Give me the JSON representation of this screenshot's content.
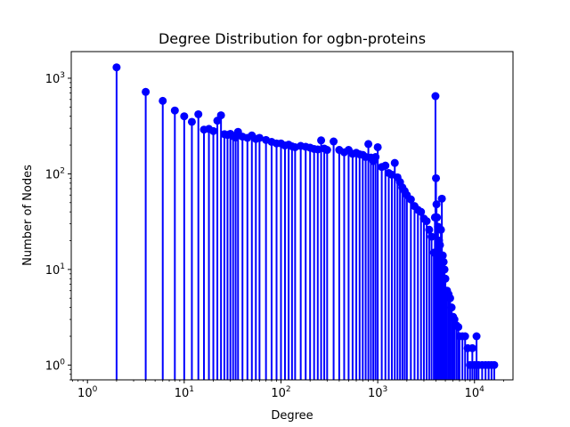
{
  "chart_data": {
    "type": "stem",
    "title": "Degree Distribution for ogbn-proteins",
    "xlabel": "Degree",
    "ylabel": "Number of Nodes",
    "xscale": "log",
    "yscale": "log",
    "xlim": [
      0.68,
      25000
    ],
    "ylim": [
      0.7,
      1900
    ],
    "xticks": [
      {
        "value": 1,
        "base": "10",
        "exp": "0"
      },
      {
        "value": 10,
        "base": "10",
        "exp": "1"
      },
      {
        "value": 100,
        "base": "10",
        "exp": "2"
      },
      {
        "value": 1000,
        "base": "10",
        "exp": "3"
      },
      {
        "value": 10000,
        "base": "10",
        "exp": "4"
      }
    ],
    "yticks": [
      {
        "value": 1,
        "base": "10",
        "exp": "0"
      },
      {
        "value": 10,
        "base": "10",
        "exp": "1"
      },
      {
        "value": 100,
        "base": "10",
        "exp": "2"
      },
      {
        "value": 1000,
        "base": "10",
        "exp": "3"
      }
    ],
    "grid": false,
    "legend": "none",
    "color": "#0000ff",
    "points": [
      [
        2,
        1300
      ],
      [
        4,
        720
      ],
      [
        6,
        580
      ],
      [
        8,
        460
      ],
      [
        10,
        400
      ],
      [
        12,
        350
      ],
      [
        14,
        420
      ],
      [
        16,
        290
      ],
      [
        18,
        295
      ],
      [
        20,
        280
      ],
      [
        22,
        360
      ],
      [
        24,
        410
      ],
      [
        26,
        260
      ],
      [
        28,
        255
      ],
      [
        30,
        262
      ],
      [
        32,
        248
      ],
      [
        34,
        240
      ],
      [
        36,
        275
      ],
      [
        40,
        245
      ],
      [
        45,
        238
      ],
      [
        50,
        252
      ],
      [
        55,
        232
      ],
      [
        60,
        238
      ],
      [
        70,
        226
      ],
      [
        80,
        216
      ],
      [
        90,
        208
      ],
      [
        100,
        208
      ],
      [
        110,
        198
      ],
      [
        120,
        202
      ],
      [
        130,
        194
      ],
      [
        140,
        190
      ],
      [
        160,
        196
      ],
      [
        180,
        192
      ],
      [
        200,
        188
      ],
      [
        220,
        182
      ],
      [
        240,
        180
      ],
      [
        260,
        224
      ],
      [
        280,
        184
      ],
      [
        300,
        178
      ],
      [
        350,
        218
      ],
      [
        400,
        178
      ],
      [
        450,
        168
      ],
      [
        500,
        178
      ],
      [
        550,
        162
      ],
      [
        600,
        166
      ],
      [
        650,
        160
      ],
      [
        700,
        158
      ],
      [
        750,
        150
      ],
      [
        800,
        205
      ],
      [
        850,
        148
      ],
      [
        900,
        136
      ],
      [
        950,
        150
      ],
      [
        1000,
        190
      ],
      [
        1100,
        118
      ],
      [
        1200,
        122
      ],
      [
        1300,
        102
      ],
      [
        1400,
        98
      ],
      [
        1500,
        130
      ],
      [
        1600,
        92
      ],
      [
        1700,
        82
      ],
      [
        1800,
        72
      ],
      [
        1900,
        66
      ],
      [
        2000,
        60
      ],
      [
        2200,
        54
      ],
      [
        2400,
        46
      ],
      [
        2600,
        42
      ],
      [
        2800,
        40
      ],
      [
        3000,
        34
      ],
      [
        3200,
        32
      ],
      [
        3400,
        26
      ],
      [
        3600,
        22
      ],
      [
        3800,
        15
      ],
      [
        3900,
        35
      ],
      [
        3950,
        650
      ],
      [
        4000,
        90
      ],
      [
        4050,
        48
      ],
      [
        4100,
        35
      ],
      [
        4200,
        28
      ],
      [
        4300,
        20
      ],
      [
        4400,
        18
      ],
      [
        4500,
        26
      ],
      [
        4600,
        55
      ],
      [
        4700,
        14
      ],
      [
        4800,
        12
      ],
      [
        4900,
        10
      ],
      [
        5000,
        8
      ],
      [
        5200,
        6
      ],
      [
        5400,
        5.5
      ],
      [
        5600,
        5
      ],
      [
        5800,
        4
      ],
      [
        6000,
        3.2
      ],
      [
        6200,
        3
      ],
      [
        6500,
        2.6
      ],
      [
        6800,
        2.5
      ],
      [
        7000,
        2
      ],
      [
        7500,
        2
      ],
      [
        8000,
        2
      ],
      [
        8500,
        1.5
      ],
      [
        9000,
        1
      ],
      [
        9500,
        1.5
      ],
      [
        10000,
        1
      ],
      [
        10500,
        2
      ],
      [
        11000,
        1
      ],
      [
        12000,
        1
      ],
      [
        13000,
        1
      ],
      [
        14000,
        1
      ],
      [
        15000,
        1
      ],
      [
        16000,
        1
      ]
    ]
  }
}
